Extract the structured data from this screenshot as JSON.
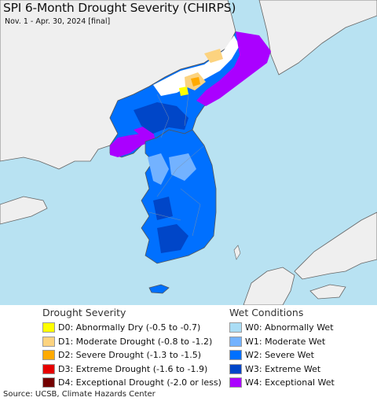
{
  "title": "SPI 6-Month Drought Severity (CHIRPS)",
  "subtitle": "Nov. 1 - Apr. 30, 2024 [final]",
  "colors": {
    "ocean": "#b8e2f2",
    "land_other": "#efefef",
    "no_data": "#ffffff"
  },
  "legend": {
    "drought": {
      "heading": "Drought Severity",
      "items": [
        {
          "code": "D0",
          "label": "D0: Abnormally Dry (-0.5 to -0.7)",
          "color": "#ffff00"
        },
        {
          "code": "D1",
          "label": "D1: Moderate Drought (-0.8 to -1.2)",
          "color": "#fcd37f"
        },
        {
          "code": "D2",
          "label": "D2: Severe Drought (-1.3 to -1.5)",
          "color": "#ffaa00"
        },
        {
          "code": "D3",
          "label": "D3: Extreme Drought (-1.6 to -1.9)",
          "color": "#e60000"
        },
        {
          "code": "D4",
          "label": "D4: Exceptional Drought (-2.0 or less)",
          "color": "#730000"
        }
      ]
    },
    "wet": {
      "heading": "Wet Conditions",
      "items": [
        {
          "code": "W0",
          "label": "W0: Abnormally Wet",
          "color": "#aaddf5"
        },
        {
          "code": "W1",
          "label": "W1: Moderate Wet",
          "color": "#73b2ff"
        },
        {
          "code": "W2",
          "label": "W2: Severe Wet",
          "color": "#0070ff"
        },
        {
          "code": "W3",
          "label": "W3: Extreme Wet",
          "color": "#0046c8"
        },
        {
          "code": "W4",
          "label": "W4: Exceptional Wet",
          "color": "#aa00ff"
        }
      ]
    }
  },
  "source": "Source: UCSB, Climate Hazards Center"
}
